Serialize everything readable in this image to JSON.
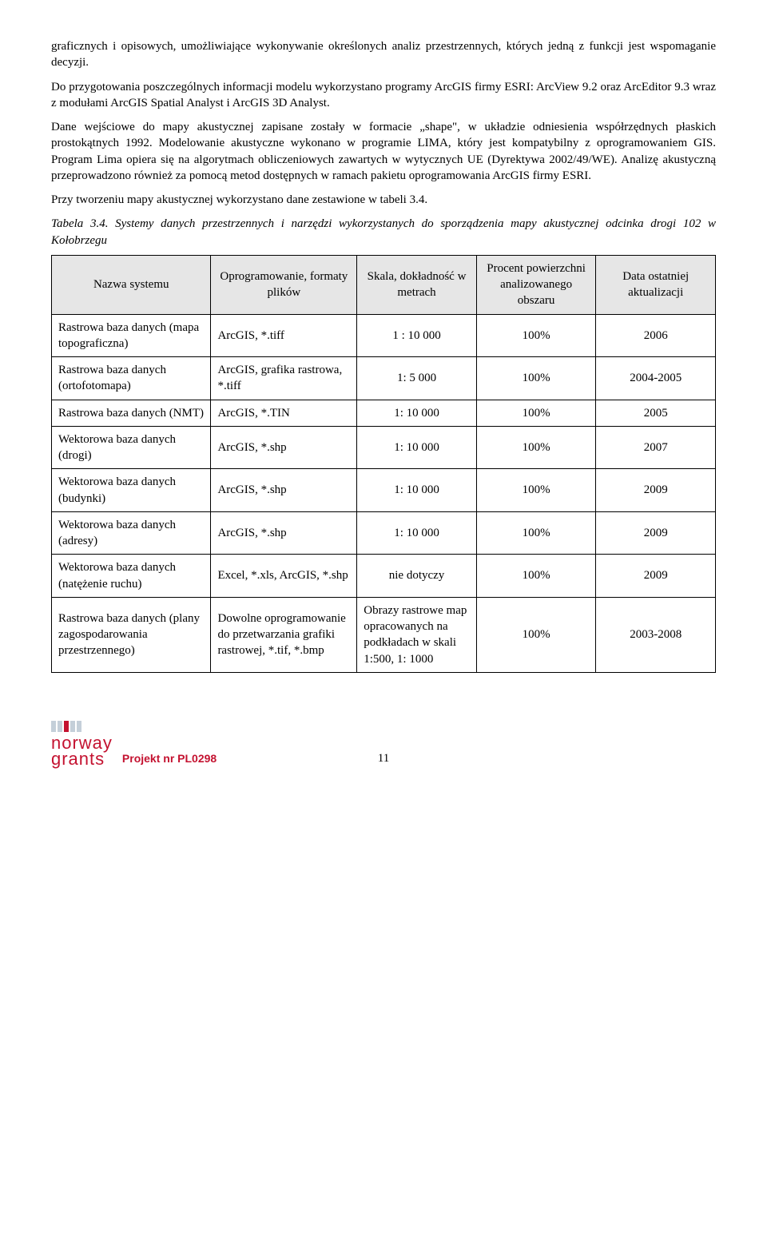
{
  "paragraphs": {
    "p1": "graficznych i opisowych, umożliwiające wykonywanie określonych analiz przestrzennych, których jedną z funkcji jest wspomaganie decyzji.",
    "p2": "Do przygotowania poszczególnych informacji modelu wykorzystano programy ArcGIS firmy ESRI: ArcView 9.2 oraz ArcEditor 9.3 wraz z modułami ArcGIS Spatial Analyst i ArcGIS 3D Analyst.",
    "p3": "Dane wejściowe do mapy akustycznej zapisane zostały w formacie „shape\", w układzie odniesienia współrzędnych płaskich prostokątnych 1992. Modelowanie akustyczne wykonano w programie LIMA, który jest kompatybilny z oprogramowaniem GIS. Program Lima opiera się na algorytmach obliczeniowych zawartych w wytycznych UE (Dyrektywa 2002/49/WE). Analizę akustyczną przeprowadzono również za pomocą metod dostępnych w ramach pakietu oprogramowania ArcGIS firmy ESRI.",
    "p4": "Przy tworzeniu mapy akustycznej wykorzystano dane zestawione w tabeli 3.4.",
    "caption_label": "Tabela 3.4.",
    "caption_text": "Systemy danych przestrzennych i narzędzi wykorzystanych do sporządzenia mapy akustycznej odcinka drogi 102 w Kołobrzegu"
  },
  "table": {
    "headers": {
      "name": "Nazwa systemu",
      "software": "Oprogramowanie, formaty plików",
      "scale": "Skala, dokładność w metrach",
      "percent": "Procent powierzchni analizowanego obszaru",
      "date": "Data ostatniej aktualizacji"
    },
    "rows": [
      {
        "name": "Rastrowa baza danych (mapa topograficzna)",
        "software": "ArcGIS, *.tiff",
        "scale": "1 : 10 000",
        "percent": "100%",
        "date": "2006"
      },
      {
        "name": "Rastrowa baza danych (ortofotomapa)",
        "software": "ArcGIS, grafika rastrowa, *.tiff",
        "scale": "1: 5 000",
        "percent": "100%",
        "date": "2004-2005"
      },
      {
        "name": "Rastrowa baza danych (NMT)",
        "software": "ArcGIS, *.TIN",
        "scale": "1: 10 000",
        "percent": "100%",
        "date": "2005"
      },
      {
        "name": "Wektorowa baza danych (drogi)",
        "software": "ArcGIS, *.shp",
        "scale": "1: 10 000",
        "percent": "100%",
        "date": "2007"
      },
      {
        "name": "Wektorowa baza danych (budynki)",
        "software": "ArcGIS, *.shp",
        "scale": "1: 10 000",
        "percent": "100%",
        "date": "2009"
      },
      {
        "name": "Wektorowa baza danych (adresy)",
        "software": "ArcGIS, *.shp",
        "scale": "1: 10 000",
        "percent": "100%",
        "date": "2009"
      },
      {
        "name": "Wektorowa baza danych (natężenie ruchu)",
        "software": "Excel, *.xls, ArcGIS, *.shp",
        "scale": "nie dotyczy",
        "percent": "100%",
        "date": "2009"
      },
      {
        "name": "Rastrowa baza danych (plany zagospodarowania przestrzennego)",
        "software": "Dowolne oprogramowanie do przetwarzania grafiki rastrowej, *.tif, *.bmp",
        "scale": "Obrazy rastrowe map opracowanych na podkładach w skali 1:500, 1: 1000",
        "percent": "100%",
        "date": "2003-2008"
      }
    ]
  },
  "footer": {
    "logo_line1": "norway",
    "logo_line2": "grants",
    "project": "Projekt nr PL0298",
    "page": "11"
  }
}
